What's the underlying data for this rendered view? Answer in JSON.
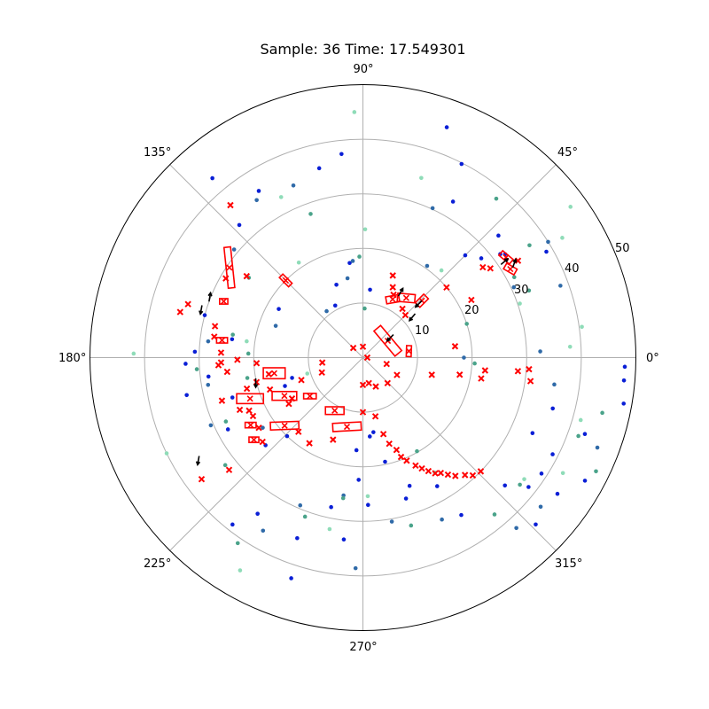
{
  "chart_data": {
    "type": "scatter",
    "projection": "polar",
    "title": "Sample: 36 Time: 17.549301",
    "rlim": [
      0,
      50
    ],
    "angle_ticks": [
      "0°",
      "45°",
      "90°",
      "135°",
      "180°",
      "225°",
      "270°",
      "315°"
    ],
    "radial_ticks": [
      "10",
      "20",
      "30",
      "40",
      "50"
    ],
    "grid": true,
    "colors": {
      "blue_points": "#0a1fd6",
      "steel_points": "#2f6aa8",
      "teal_points": "#4aa38a",
      "mint_points": "#8fdcb8",
      "boxes": "#ff0000",
      "markers": "#ff0000",
      "arrows": "#000000",
      "grid": "#b0b0b0"
    },
    "series": [
      {
        "style": "points",
        "color": "blue_points",
        "points": [
          [
            30,
            38.8
          ],
          [
            36,
            32.2
          ],
          [
            37,
            31.5
          ],
          [
            42,
            33.4
          ],
          [
            40,
            28.3
          ],
          [
            45,
            26.5
          ],
          [
            60,
            33.0
          ],
          [
            63,
            39.8
          ],
          [
            70,
            44.9
          ],
          [
            84,
            12.5
          ],
          [
            96,
            37.5
          ],
          [
            98,
            17.5
          ],
          [
            103,
            35.6
          ],
          [
            110,
            14.2
          ],
          [
            118,
            10.8
          ],
          [
            122,
            36.0
          ],
          [
            130,
            42.9
          ],
          [
            133,
            33.2
          ],
          [
            150,
            17.8
          ],
          [
            165,
            30.0
          ],
          [
            172,
            24.2
          ],
          [
            178,
            30.8
          ],
          [
            182,
            32.5
          ],
          [
            187,
            28.5
          ],
          [
            192,
            33.0
          ],
          [
            196,
            13.5
          ],
          [
            197,
            25.0
          ],
          [
            200,
            15.2
          ],
          [
            208,
            28.0
          ],
          [
            222,
            24.0
          ],
          [
            226,
            20.0
          ],
          [
            232,
            38.8
          ],
          [
            236,
            34.5
          ],
          [
            250,
            35.2
          ],
          [
            252,
            42.5
          ],
          [
            258,
            28.0
          ],
          [
            264,
            33.5
          ],
          [
            266,
            17.0
          ],
          [
            268,
            22.4
          ],
          [
            272,
            27.0
          ],
          [
            275,
            14.5
          ],
          [
            278,
            13.8
          ],
          [
            282,
            19.5
          ],
          [
            287,
            27.0
          ],
          [
            290,
            25.0
          ],
          [
            300,
            27.2
          ],
          [
            302,
            34.0
          ],
          [
            316,
            44.0
          ],
          [
            318,
            35.0
          ],
          [
            322,
            38.5
          ],
          [
            325,
            43.5
          ],
          [
            327,
            39.0
          ],
          [
            331,
            46.5
          ],
          [
            333,
            39.0
          ],
          [
            336,
            34.0
          ],
          [
            341,
            43.0
          ],
          [
            345,
            36.0
          ],
          [
            350,
            48.5
          ],
          [
            355,
            48.0
          ],
          [
            358,
            48.0
          ]
        ]
      },
      {
        "style": "points",
        "color": "steel_points",
        "points": [
          [
            20,
            38.5
          ],
          [
            25,
            30.5
          ],
          [
            32,
            40.0
          ],
          [
            55,
            20.5
          ],
          [
            65,
            30.2
          ],
          [
            96,
            17.8
          ],
          [
            101,
            14.8
          ],
          [
            112,
            34.0
          ],
          [
            124,
            34.8
          ],
          [
            128,
            10.8
          ],
          [
            140,
            30.8
          ],
          [
            160,
            17.0
          ],
          [
            174,
            28.5
          ],
          [
            190,
            28.8
          ],
          [
            204,
            30.5
          ],
          [
            215,
            22.4
          ],
          [
            240,
            36.6
          ],
          [
            247,
            29.4
          ],
          [
            262,
            25.5
          ],
          [
            268,
            38.6
          ],
          [
            280,
            30.5
          ],
          [
            296,
            33.0
          ],
          [
            312,
            42.0
          ],
          [
            320,
            42.5
          ],
          [
            339,
            46.0
          ],
          [
            352,
            35.4
          ],
          [
            0,
            18.5
          ],
          [
            2,
            32.5
          ]
        ]
      },
      {
        "style": "points",
        "color": "teal_points",
        "points": [
          [
            18,
            20.0
          ],
          [
            22,
            32.8
          ],
          [
            28,
            31.4
          ],
          [
            34,
            36.8
          ],
          [
            50,
            38.0
          ],
          [
            88,
            9.0
          ],
          [
            92,
            18.5
          ],
          [
            110,
            28.0
          ],
          [
            145,
            25.5
          ],
          [
            170,
            24.2
          ],
          [
            178,
            21.0
          ],
          [
            184,
            30.5
          ],
          [
            190,
            21.5
          ],
          [
            205,
            27.7
          ],
          [
            218,
            32.0
          ],
          [
            236,
            41.0
          ],
          [
            250,
            31.0
          ],
          [
            262,
            26.0
          ],
          [
            286,
            32.0
          ],
          [
            300,
            19.8
          ],
          [
            310,
            37.5
          ],
          [
            321,
            37.0
          ],
          [
            334,
            47.5
          ],
          [
            340,
            42.0
          ],
          [
            347,
            45.0
          ],
          [
            357,
            20.5
          ]
        ]
      },
      {
        "style": "points",
        "color": "mint_points",
        "points": [
          [
            36,
            47.0
          ],
          [
            31,
            42.6
          ],
          [
            48,
            21.5
          ],
          [
            72,
            34.6
          ],
          [
            89,
            23.5
          ],
          [
            117,
            33.0
          ],
          [
            124,
            21.0
          ],
          [
            172,
            21.5
          ],
          [
            179,
            42.0
          ],
          [
            196,
            10.6
          ],
          [
            206,
            40.0
          ],
          [
            240,
            45.0
          ],
          [
            259,
            32.0
          ],
          [
            272,
            25.4
          ],
          [
            302,
            24.8
          ],
          [
            323,
            37.0
          ],
          [
            330,
            42.3
          ],
          [
            344,
            41.5
          ],
          [
            3,
            38.0
          ],
          [
            8,
            40.5
          ],
          [
            19,
            30.4
          ],
          [
            92,
            45.0
          ]
        ]
      },
      {
        "style": "markers",
        "color": "markers",
        "points": [
          [
            0,
            0.8
          ],
          [
            90,
            2.0
          ],
          [
            135,
            2.5
          ],
          [
            187,
            7.5
          ],
          [
            200,
            8.0
          ],
          [
            200,
            12.0
          ],
          [
            190,
            17.5
          ],
          [
            193,
            20.0
          ],
          [
            183,
            19.5
          ],
          [
            181,
            23.0
          ],
          [
            178,
            26.0
          ],
          [
            183,
            26.5
          ],
          [
            186,
            25.0
          ],
          [
            195,
            22.0
          ],
          [
            197,
            27.0
          ],
          [
            199,
            18.0
          ],
          [
            203,
            24.5
          ],
          [
            205,
            23.0
          ],
          [
            208,
            22.8
          ],
          [
            210,
            15.0
          ],
          [
            212,
            16.0
          ],
          [
            229,
            18.0
          ],
          [
            214,
            23.0
          ],
          [
            220,
            32.0
          ],
          [
            238,
            18.5
          ],
          [
            250,
            16.0
          ],
          [
            270,
            10.0
          ],
          [
            283,
            4.8
          ],
          [
            294,
            5.8
          ],
          [
            314,
            6.5
          ],
          [
            333,
            7.0
          ],
          [
            345,
            4.5
          ],
          [
            346,
            13.0
          ],
          [
            350,
            18.0
          ],
          [
            350,
            22.0
          ],
          [
            354,
            22.5
          ],
          [
            355,
            28.5
          ],
          [
            356,
            30.5
          ],
          [
            352,
            31.0
          ],
          [
            270,
            5.0
          ],
          [
            282,
            11.0
          ],
          [
            285,
            14.5
          ],
          [
            287,
            16.5
          ],
          [
            290,
            18.0
          ],
          [
            291,
            19.5
          ],
          [
            293,
            20.5
          ],
          [
            296,
            22.0
          ],
          [
            298,
            23.0
          ],
          [
            300,
            24.0
          ],
          [
            302,
            25.0
          ],
          [
            304,
            25.5
          ],
          [
            306,
            26.5
          ],
          [
            308,
            27.5
          ],
          [
            311,
            28.5
          ],
          [
            313,
            29.5
          ],
          [
            316,
            30.0
          ],
          [
            45,
            11.0
          ],
          [
            51,
            11.5
          ],
          [
            64,
            12.8
          ],
          [
            70,
            16.0
          ],
          [
            67,
            14.0
          ],
          [
            40,
            20.0
          ],
          [
            28,
            22.5
          ],
          [
            7,
            17.0
          ],
          [
            32,
            33.5
          ],
          [
            35,
            28.5
          ],
          [
            37,
            27.5
          ],
          [
            131,
            37.0
          ],
          [
            145,
            26.0
          ],
          [
            150,
            29.0
          ],
          [
            163,
            33.5
          ],
          [
            166,
            34.5
          ],
          [
            168,
            27.7
          ],
          [
            172,
            27.5
          ],
          [
            182,
            26.0
          ],
          [
            220,
            24.0
          ],
          [
            217,
            37.0
          ]
        ]
      },
      {
        "style": "boxes",
        "color": "boxes",
        "boxes": [
          {
            "r": 5.5,
            "theta": 34,
            "len": 6.0,
            "wid": 1.6,
            "heading": 130
          },
          {
            "r": 13.5,
            "theta": 54,
            "len": 3.2,
            "wid": 1.5,
            "heading": 175
          },
          {
            "r": 12.0,
            "theta": 63,
            "len": 2.4,
            "wid": 1.3,
            "heading": 10
          },
          {
            "r": 15.0,
            "theta": 44,
            "len": 2.2,
            "wid": 1.2,
            "heading": 45
          },
          {
            "r": 8.5,
            "theta": 8,
            "len": 2.0,
            "wid": 0.9,
            "heading": 88
          },
          {
            "r": 32.0,
            "theta": 35,
            "len": 2.5,
            "wid": 1.1,
            "heading": 140
          },
          {
            "r": 31.5,
            "theta": 31,
            "len": 2.2,
            "wid": 1.2,
            "heading": 150
          },
          {
            "r": 20.0,
            "theta": 135,
            "len": 2.4,
            "wid": 0.9,
            "heading": 135
          },
          {
            "r": 29.5,
            "theta": 146,
            "len": 7.5,
            "wid": 1.2,
            "heading": 96
          },
          {
            "r": 26.0,
            "theta": 173,
            "len": 2.0,
            "wid": 1.0,
            "heading": 0
          },
          {
            "r": 16.5,
            "theta": 190,
            "len": 4.0,
            "wid": 2.0,
            "heading": 0
          },
          {
            "r": 16.0,
            "theta": 206,
            "len": 4.5,
            "wid": 1.6,
            "heading": 0
          },
          {
            "r": 22.0,
            "theta": 200,
            "len": 4.9,
            "wid": 1.8,
            "heading": 0
          },
          {
            "r": 19.0,
            "theta": 221,
            "len": 5.2,
            "wid": 1.4,
            "heading": 2
          },
          {
            "r": 11.0,
            "theta": 242,
            "len": 3.4,
            "wid": 1.4,
            "heading": 0
          },
          {
            "r": 12.0,
            "theta": 216,
            "len": 2.3,
            "wid": 1.0,
            "heading": 0
          },
          {
            "r": 13.0,
            "theta": 257,
            "len": 5.2,
            "wid": 1.5,
            "heading": 3
          },
          {
            "r": 24.0,
            "theta": 211,
            "len": 2.0,
            "wid": 1.0,
            "heading": 0
          },
          {
            "r": 25.0,
            "theta": 217,
            "len": 1.8,
            "wid": 1.0,
            "heading": 0
          },
          {
            "r": 27.5,
            "theta": 158,
            "len": 1.5,
            "wid": 1.0,
            "heading": 0
          }
        ]
      },
      {
        "style": "arrows",
        "color": "arrows",
        "arrows": [
          {
            "r": 7.0,
            "theta": 37,
            "heading": 225
          },
          {
            "r": 13.0,
            "theta": 60,
            "heading": 60
          },
          {
            "r": 12.5,
            "theta": 40,
            "heading": 230
          },
          {
            "r": 15.0,
            "theta": 44,
            "heading": 225
          },
          {
            "r": 30.5,
            "theta": 34,
            "heading": 40
          },
          {
            "r": 32.0,
            "theta": 31,
            "heading": 70
          },
          {
            "r": 30.0,
            "theta": 160,
            "heading": 80
          },
          {
            "r": 31.0,
            "theta": 162,
            "heading": 260
          },
          {
            "r": 35.0,
            "theta": 211,
            "heading": 260
          },
          {
            "r": 20.0,
            "theta": 191,
            "heading": 270
          }
        ]
      }
    ]
  }
}
